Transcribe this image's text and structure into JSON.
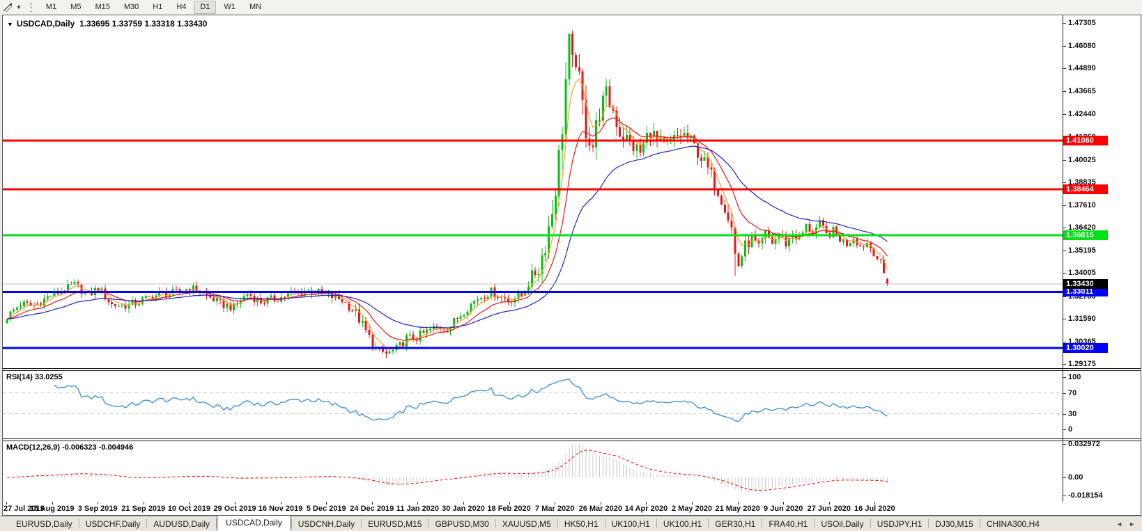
{
  "toolbar": {
    "timeframes": [
      "M1",
      "M5",
      "M15",
      "M30",
      "H1",
      "H4",
      "D1",
      "W1",
      "MN"
    ],
    "active_timeframe": "D1",
    "caret": "▼"
  },
  "chart": {
    "title_caret": "▼",
    "title_symbol": "USDCAD,Daily",
    "title_ohlc": "1.33695 1.33759 1.33318 1.33430"
  },
  "chart_data": {
    "type": "candlestick",
    "symbol": "USDCAD",
    "timeframe": "Daily",
    "current_bar": {
      "open": 1.33695,
      "high": 1.33759,
      "low": 1.33318,
      "close": 1.3343
    },
    "current_price_label": "1.33430",
    "y_ticks": [
      1.47305,
      1.4608,
      1.4489,
      1.43665,
      1.4244,
      1.4125,
      1.40025,
      1.38835,
      1.3761,
      1.3642,
      1.35195,
      1.34005,
      1.3278,
      1.3159,
      1.30365,
      1.29175
    ],
    "x_labels": [
      "27 Jul 2019",
      "15 Aug 2019",
      "3 Sep 2019",
      "21 Sep 2019",
      "10 Oct 2019",
      "29 Oct 2019",
      "16 Nov 2019",
      "5 Dec 2019",
      "24 Dec 2019",
      "11 Jan 2020",
      "30 Jan 2020",
      "18 Feb 2020",
      "7 Mar 2020",
      "26 Mar 2020",
      "14 Apr 2020",
      "2 May 2020",
      "21 May 2020",
      "9 Jun 2020",
      "27 Jun 2020",
      "16 Jul 2020"
    ],
    "levels": [
      {
        "price": 1.4106,
        "label": "1.41060",
        "color": "#FF0000"
      },
      {
        "price": 1.38464,
        "label": "1.38464",
        "color": "#FF0000"
      },
      {
        "price": 1.36015,
        "label": "1.36015",
        "color": "#00E114"
      },
      {
        "price": 1.33011,
        "label": "1.33011",
        "color": "#0000FF"
      },
      {
        "price": 1.3002,
        "label": "1.30020",
        "color": "#0000FF"
      }
    ],
    "bar_count": 261,
    "close_anchors": [
      [
        0,
        1.317
      ],
      [
        4,
        1.3235
      ],
      [
        8,
        1.3228
      ],
      [
        13,
        1.3282
      ],
      [
        17,
        1.3312
      ],
      [
        20,
        1.3338
      ],
      [
        24,
        1.3282
      ],
      [
        27,
        1.3322
      ],
      [
        31,
        1.3232
      ],
      [
        36,
        1.3228
      ],
      [
        40,
        1.3256
      ],
      [
        45,
        1.3288
      ],
      [
        50,
        1.3296
      ],
      [
        54,
        1.3322
      ],
      [
        58,
        1.3292
      ],
      [
        63,
        1.3238
      ],
      [
        67,
        1.3217
      ],
      [
        71,
        1.3292
      ],
      [
        75,
        1.3248
      ],
      [
        81,
        1.3272
      ],
      [
        85,
        1.3296
      ],
      [
        90,
        1.3306
      ],
      [
        94,
        1.3288
      ],
      [
        99,
        1.3258
      ],
      [
        103,
        1.3188
      ],
      [
        106,
        1.309
      ],
      [
        109,
        1.2992
      ],
      [
        112,
        1.297
      ],
      [
        115,
        1.2992
      ],
      [
        118,
        1.3052
      ],
      [
        121,
        1.3058
      ],
      [
        126,
        1.3108
      ],
      [
        131,
        1.3122
      ],
      [
        135,
        1.3202
      ],
      [
        139,
        1.3268
      ],
      [
        143,
        1.3302
      ],
      [
        148,
        1.3258
      ],
      [
        152,
        1.3282
      ],
      [
        155,
        1.3382
      ],
      [
        157,
        1.3425
      ],
      [
        159,
        1.3558
      ],
      [
        161,
        1.3735
      ],
      [
        163,
        1.4005
      ],
      [
        164,
        1.4195
      ],
      [
        165,
        1.4425
      ],
      [
        166,
        1.46
      ],
      [
        167,
        1.448
      ],
      [
        168,
        1.4565
      ],
      [
        169,
        1.439
      ],
      [
        171,
        1.4175
      ],
      [
        173,
        1.4082
      ],
      [
        175,
        1.4262
      ],
      [
        177,
        1.434
      ],
      [
        179,
        1.4268
      ],
      [
        181,
        1.4148
      ],
      [
        184,
        1.4092
      ],
      [
        187,
        1.404
      ],
      [
        190,
        1.4168
      ],
      [
        192,
        1.4092
      ],
      [
        195,
        1.4075
      ],
      [
        198,
        1.4125
      ],
      [
        200,
        1.4135
      ],
      [
        202,
        1.41
      ],
      [
        204,
        1.4045
      ],
      [
        206,
        1.3985
      ],
      [
        208,
        1.392
      ],
      [
        210,
        1.384
      ],
      [
        212,
        1.376
      ],
      [
        214,
        1.364
      ],
      [
        215,
        1.35
      ],
      [
        216,
        1.3445
      ],
      [
        218,
        1.3545
      ],
      [
        220,
        1.3585
      ],
      [
        222,
        1.353
      ],
      [
        224,
        1.3608
      ],
      [
        226,
        1.3562
      ],
      [
        228,
        1.3602
      ],
      [
        230,
        1.3558
      ],
      [
        232,
        1.3608
      ],
      [
        234,
        1.3582
      ],
      [
        236,
        1.3648
      ],
      [
        238,
        1.3622
      ],
      [
        240,
        1.3658
      ],
      [
        242,
        1.3602
      ],
      [
        244,
        1.3622
      ],
      [
        246,
        1.3582
      ],
      [
        248,
        1.3556
      ],
      [
        250,
        1.3592
      ],
      [
        252,
        1.3542
      ],
      [
        254,
        1.3562
      ],
      [
        256,
        1.3512
      ],
      [
        258,
        1.3452
      ],
      [
        260,
        1.3343
      ]
    ],
    "range_anchors": [
      [
        0,
        0.005
      ],
      [
        100,
        0.0052
      ],
      [
        106,
        0.0068
      ],
      [
        118,
        0.006
      ],
      [
        150,
        0.005
      ],
      [
        156,
        0.0085
      ],
      [
        160,
        0.015
      ],
      [
        163,
        0.02
      ],
      [
        168,
        0.021
      ],
      [
        172,
        0.0165
      ],
      [
        176,
        0.014
      ],
      [
        182,
        0.011
      ],
      [
        190,
        0.0105
      ],
      [
        200,
        0.009
      ],
      [
        208,
        0.0085
      ],
      [
        214,
        0.0095
      ],
      [
        218,
        0.0075
      ],
      [
        226,
        0.0062
      ],
      [
        240,
        0.0058
      ],
      [
        252,
        0.005
      ],
      [
        260,
        0.0045
      ]
    ],
    "specials": [
      {
        "i": 166,
        "high": 1.4668
      },
      {
        "i": 215,
        "low": 1.3385
      }
    ],
    "moving_averages": [
      {
        "name": "fast",
        "period": 5,
        "color": "#FF9C28"
      },
      {
        "name": "medium",
        "period": 13,
        "color": "#F01414"
      },
      {
        "name": "slow",
        "period": 34,
        "color": "#2121C8"
      }
    ],
    "indicators": {
      "rsi": {
        "label": "RSI(14) 33.0255",
        "period": 14,
        "last_value": 33.0255,
        "scale_ticks": [
          100,
          70,
          30,
          0
        ],
        "guide_levels": [
          70,
          30
        ],
        "color": "#4393D9",
        "guide_color": "#C4C4C4"
      },
      "macd": {
        "label": "MACD(12,26,9) -0.006323 -0.004946",
        "fast": 12,
        "slow": 26,
        "signal": 9,
        "values": [
          -0.006323,
          -0.004946
        ],
        "scale_ticks": [
          {
            "v": 0.032972,
            "t": "0.032972"
          },
          {
            "v": 0,
            "t": "0.00"
          },
          {
            "v": -0.018154,
            "t": "-0.018154"
          }
        ],
        "hist_color": "#C8C8C8",
        "signal_color": "#FF0000"
      }
    },
    "colors": {
      "up": "#00C411",
      "down": "#F01414",
      "current_line": "#C0C0C0",
      "current_badge_bg": "#000000",
      "current_badge_text": "#FFFFFF"
    }
  },
  "tabs": {
    "items": [
      {
        "label": "EURUSD,Daily"
      },
      {
        "label": "USDCHF,Daily"
      },
      {
        "label": "AUDUSD,Daily"
      },
      {
        "label": "USDCAD,Daily",
        "active": true
      },
      {
        "label": "USDCNH,Daily"
      },
      {
        "label": "EURUSD,M15"
      },
      {
        "label": "GBPUSD,M30"
      },
      {
        "label": "XAUUSD,M5"
      },
      {
        "label": "HK50,H1"
      },
      {
        "label": "UK100,H1"
      },
      {
        "label": "UK100,H1"
      },
      {
        "label": "GER30,H1"
      },
      {
        "label": "FRA40,H1"
      },
      {
        "label": "USOil,Daily"
      },
      {
        "label": "USDJPY,H1"
      },
      {
        "label": "DJ30,M15"
      },
      {
        "label": "CHINA300,H4"
      }
    ],
    "scroll_left": "◄",
    "scroll_right": "►"
  }
}
